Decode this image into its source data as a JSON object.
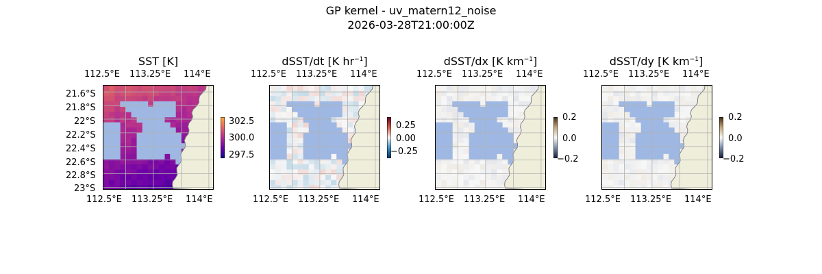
{
  "figure": {
    "title_line1": "GP kernel - uv_matern12_noise",
    "title_line2": "2026-03-28T21:00:00Z"
  },
  "colors": {
    "land": "#efeedb",
    "water": "#9fb8e3",
    "grid": "#b0b0b0",
    "coast": "#808080"
  },
  "chart_data": [
    {
      "type": "heatmap",
      "title": "SST [K]",
      "x_ticks_top": [
        "112.5°E",
        "113.25°E",
        "114°E"
      ],
      "x_ticks_bottom": [
        "112.5°E",
        "113.25°E",
        "114°E"
      ],
      "y_ticks": [
        "21.6°S",
        "21.8°S",
        "22°S",
        "22.2°S",
        "22.4°S",
        "22.6°S",
        "22.8°S",
        "23°S"
      ],
      "lon_range": [
        112.5,
        114.0
      ],
      "lat_range": [
        -23.0,
        -21.5
      ],
      "colorbar": {
        "ticks": [
          "302.5",
          "300.0",
          "297.5"
        ],
        "range": [
          297,
          303
        ],
        "cmap": "plasma"
      },
      "grid": true
    },
    {
      "type": "heatmap",
      "title_main": "dSST/dt [K hr",
      "title_sup": "−1",
      "title_end": "]",
      "x_ticks_top": [
        "112.5°E",
        "113.25°E",
        "114°E"
      ],
      "x_ticks_bottom": [
        "112.5°E",
        "113.25°E",
        "114°E"
      ],
      "lon_range": [
        112.5,
        114.0
      ],
      "lat_range": [
        -23.0,
        -21.5
      ],
      "colorbar": {
        "ticks": [
          "0.25",
          "0.00",
          "−0.25"
        ],
        "range": [
          -0.4,
          0.4
        ],
        "cmap": "RdBu_r"
      },
      "grid": true
    },
    {
      "type": "heatmap",
      "title_main": "dSST/dx [K km",
      "title_sup": "−1",
      "title_end": "]",
      "x_ticks_top": [
        "112.5°E",
        "113.25°E",
        "114°E"
      ],
      "x_ticks_bottom": [
        "112.5°E",
        "113.25°E",
        "114°E"
      ],
      "lon_range": [
        112.5,
        114.0
      ],
      "lat_range": [
        -23.0,
        -21.5
      ],
      "colorbar": {
        "ticks": [
          "0.2",
          "0.0",
          "−0.2"
        ],
        "range": [
          -0.2,
          0.2
        ],
        "cmap": "BrBG-like"
      },
      "grid": true
    },
    {
      "type": "heatmap",
      "title_main": "dSST/dy [K km",
      "title_sup": "−1",
      "title_end": "]",
      "x_ticks_top": [
        "112.5°E",
        "113.25°E",
        "114°E"
      ],
      "x_ticks_bottom": [
        "112.5°E",
        "113.25°E",
        "114°E"
      ],
      "lon_range": [
        112.5,
        114.0
      ],
      "lat_range": [
        -23.0,
        -21.5
      ],
      "colorbar": {
        "ticks": [
          "0.2",
          "0.0",
          "−0.2"
        ],
        "range": [
          -0.2,
          0.2
        ],
        "cmap": "BrBG-like"
      },
      "grid": true
    }
  ]
}
